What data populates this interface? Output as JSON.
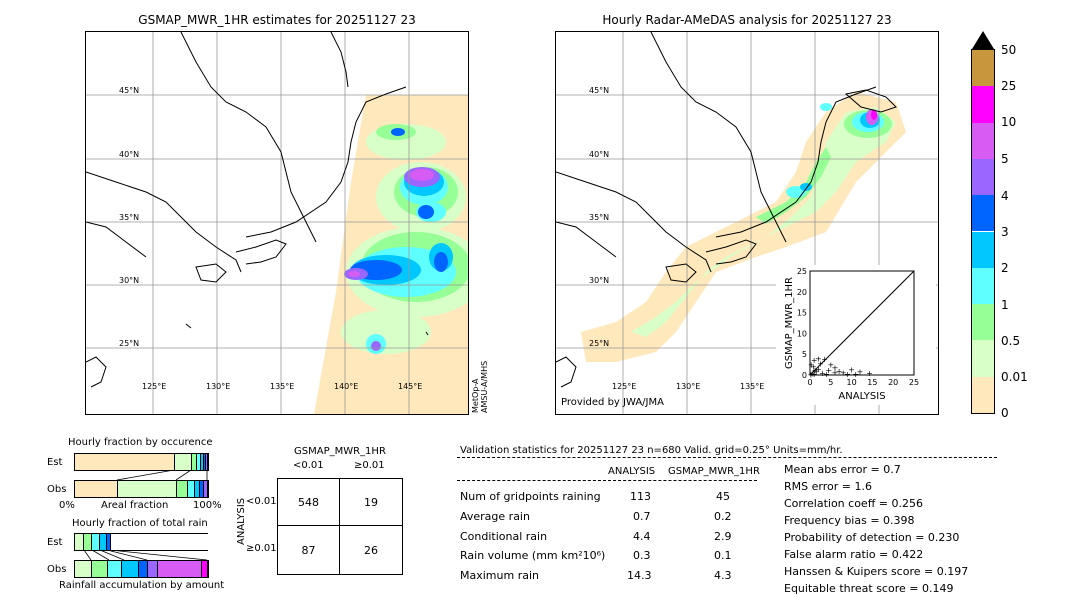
{
  "left_map": {
    "title": "GSMAP_MWR_1HR estimates for 20251127 23",
    "lat_labels": [
      "45°N",
      "40°N",
      "35°N",
      "30°N",
      "25°N"
    ],
    "lon_labels": [
      "125°E",
      "130°E",
      "135°E",
      "140°E",
      "145°E"
    ],
    "side_label_1": "MetOp-A",
    "side_label_2": "AMSU-A/MHS"
  },
  "right_map": {
    "title": "Hourly Radar-AMeDAS analysis for 20251127 23",
    "lat_labels": [
      "45°N",
      "40°N",
      "35°N",
      "30°N",
      "25°N"
    ],
    "lon_labels": [
      "125°E",
      "130°E",
      "135°E"
    ],
    "credit": "Provided by JWA/JMA"
  },
  "colorbar": {
    "labels": [
      "50",
      "25",
      "10",
      "5",
      "4",
      "3",
      "2",
      "1",
      "0.5",
      "0.01",
      "0"
    ],
    "colors": [
      "#c8963c",
      "#ff00ff",
      "#d65cf4",
      "#9966ff",
      "#0064ff",
      "#00c8ff",
      "#5fffff",
      "#96ff96",
      "#d9ffc8",
      "#ffe8bc"
    ]
  },
  "scatter": {
    "ylabel": "GSMAP_MWR_1HR",
    "xlabel": "ANALYSIS",
    "ticks": [
      "0",
      "5",
      "10",
      "15",
      "20",
      "25"
    ]
  },
  "chart_data": {
    "type": "scatter",
    "xlabel": "ANALYSIS",
    "ylabel": "GSMAP_MWR_1HR",
    "xlim": [
      0,
      25
    ],
    "ylim": [
      0,
      25
    ],
    "points": [
      [
        0.2,
        0.1
      ],
      [
        0.5,
        0.4
      ],
      [
        1,
        0.3
      ],
      [
        1.5,
        0.8
      ],
      [
        2,
        1.5
      ],
      [
        0.3,
        2.5
      ],
      [
        1,
        3.6
      ],
      [
        2.5,
        2.8
      ],
      [
        3,
        0.5
      ],
      [
        4,
        0.3
      ],
      [
        5,
        2.5
      ],
      [
        6,
        0.6
      ],
      [
        7,
        1
      ],
      [
        9,
        0.2
      ],
      [
        10,
        1.3
      ],
      [
        12,
        0.8
      ],
      [
        14.3,
        0.5
      ],
      [
        6,
        1.8
      ],
      [
        3.5,
        3.8
      ],
      [
        2,
        4
      ],
      [
        1.2,
        1.2
      ],
      [
        0.8,
        2
      ],
      [
        4.5,
        1.2
      ],
      [
        8,
        0.6
      ],
      [
        11,
        0.3
      ]
    ]
  },
  "occurrence": {
    "title": "Hourly fraction by occurence",
    "row1": "Est",
    "row2": "Obs",
    "axis_left": "0%",
    "axis_mid": "Areal fraction",
    "axis_right": "100%",
    "est_fracs": [
      0.75,
      0.13,
      0.04,
      0.03,
      0.02,
      0.015,
      0.015
    ],
    "obs_fracs": [
      0.32,
      0.45,
      0.08,
      0.05,
      0.04,
      0.03,
      0.03
    ]
  },
  "totalrain": {
    "title": "Hourly fraction of total rain",
    "row1": "Est",
    "row2": "Obs",
    "axis_label": "Rainfall accumulation by amount",
    "est_fracs": [
      0.07,
      0.06,
      0.06,
      0.05,
      0.03
    ],
    "obs_fracs": [
      0.13,
      0.13,
      0.11,
      0.13,
      0.07,
      0.08,
      0.34,
      0.05
    ]
  },
  "contingency": {
    "title": "GSMAP_MWR_1HR",
    "col1": "<0.01",
    "col2": "≥0.01",
    "side": "ANALYSIS",
    "row1": "<0.01",
    "row2": "≥0.01",
    "v11": "548",
    "v12": "19",
    "v21": "87",
    "v22": "26"
  },
  "validation": {
    "header": "Validation statistics for 20251127 23  n=680 Valid. grid=0.25° Units=mm/hr.",
    "col_a": "ANALYSIS",
    "col_b": "GSMAP_MWR_1HR",
    "rows": [
      {
        "label": "Num of gridpoints raining",
        "a": "113",
        "b": "45"
      },
      {
        "label": "Average rain",
        "a": "0.7",
        "b": "0.2"
      },
      {
        "label": "Conditional rain",
        "a": "4.4",
        "b": "2.9"
      },
      {
        "label": "Rain volume (mm km²10⁶)",
        "a": "0.3",
        "b": "0.1"
      },
      {
        "label": "Maximum rain",
        "a": "14.3",
        "b": "4.3"
      }
    ],
    "scores": [
      "Mean abs error =    0.7",
      "RMS error =    1.6",
      "Correlation coeff =  0.256",
      "Frequency bias =  0.398",
      "Probability of detection =  0.230",
      "False alarm ratio =  0.422",
      "Hanssen & Kuipers score =  0.197",
      "Equitable threat score =  0.149"
    ]
  }
}
